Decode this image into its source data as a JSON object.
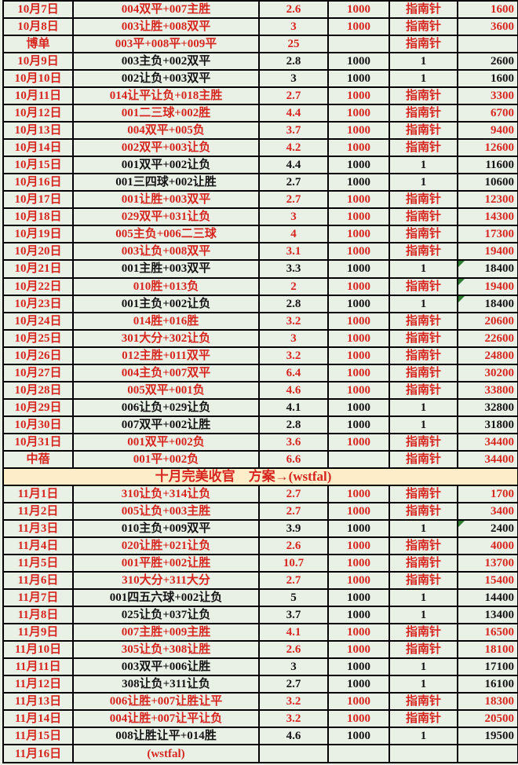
{
  "colors": {
    "cell_background": "#e9f1e6",
    "banner_background": "#fdeec9",
    "red_text": "#d7261f",
    "black_text": "#141414",
    "grid_border": "#000000",
    "comment_triangle_green": "#2f7d33"
  },
  "banner": {
    "text": "十月完美收官    方案→(wstfal)"
  },
  "table": {
    "rows": [
      {
        "date": "10月7日",
        "plan": "004双平+007主胜",
        "odds": "2.6",
        "stake": "1000",
        "source": "指南针",
        "result": "1600",
        "style": "red"
      },
      {
        "date": "10月8日",
        "plan": "003让胜+008双平",
        "odds": "3",
        "stake": "1000",
        "source": "指南针",
        "result": "3600",
        "style": "red"
      },
      {
        "date": "博单",
        "plan": "003平+008平+009平",
        "odds": "25",
        "stake": "",
        "source": "指南针",
        "result": "",
        "style": "red"
      },
      {
        "date": "10月9日",
        "plan": "003主负+002双平",
        "odds": "2.8",
        "stake": "1000",
        "source": "1",
        "result": "2600",
        "style": "black"
      },
      {
        "date": "10月10日",
        "plan": "002让负+003双平",
        "odds": "3",
        "stake": "1000",
        "source": "1",
        "result": "1600",
        "style": "black"
      },
      {
        "date": "10月11日",
        "plan": "014让平让负+018主胜",
        "odds": "2.7",
        "stake": "1000",
        "source": "指南针",
        "result": "3300",
        "style": "red"
      },
      {
        "date": "10月12日",
        "plan": "001二三球+002胜",
        "odds": "4.4",
        "stake": "1000",
        "source": "指南针",
        "result": "6700",
        "style": "red"
      },
      {
        "date": "10月13日",
        "plan": "004双平+005负",
        "odds": "3.7",
        "stake": "1000",
        "source": "指南针",
        "result": "9400",
        "style": "red"
      },
      {
        "date": "10月14日",
        "plan": "002双平+003让负",
        "odds": "4.2",
        "stake": "1000",
        "source": "指南针",
        "result": "12600",
        "style": "red"
      },
      {
        "date": "10月15日",
        "plan": "001双平+002让负",
        "odds": "4.4",
        "stake": "1000",
        "source": "1",
        "result": "11600",
        "style": "black"
      },
      {
        "date": "10月16日",
        "plan": "001三四球+002让胜",
        "odds": "2.7",
        "stake": "1000",
        "source": "1",
        "result": "10600",
        "style": "black"
      },
      {
        "date": "10月17日",
        "plan": "001让胜+003双平",
        "odds": "2.7",
        "stake": "1000",
        "source": "指南针",
        "result": "12300",
        "style": "red"
      },
      {
        "date": "10月18日",
        "plan": "029双平+031让负",
        "odds": "3",
        "stake": "1000",
        "source": "指南针",
        "result": "14300",
        "style": "red"
      },
      {
        "date": "10月19日",
        "plan": "005主负+006二三球",
        "odds": "4",
        "stake": "1000",
        "source": "指南针",
        "result": "17300",
        "style": "red"
      },
      {
        "date": "10月20日",
        "plan": "003让负+008双平",
        "odds": "3.1",
        "stake": "1000",
        "source": "指南针",
        "result": "19400",
        "style": "red"
      },
      {
        "date": "10月21日",
        "plan": "001主胜+003双平",
        "odds": "3.3",
        "stake": "1000",
        "source": "1",
        "result": "18400",
        "style": "black",
        "mark": true
      },
      {
        "date": "10月22日",
        "plan": "010胜+013负",
        "odds": "2",
        "stake": "1000",
        "source": "指南针",
        "result": "19400",
        "style": "red",
        "mark": true
      },
      {
        "date": "10月23日",
        "plan": "001主负+002让负",
        "odds": "2.8",
        "stake": "1000",
        "source": "1",
        "result": "18400",
        "style": "black",
        "mark": true
      },
      {
        "date": "10月24日",
        "plan": "014胜+016胜",
        "odds": "3.2",
        "stake": "1000",
        "source": "指南针",
        "result": "20600",
        "style": "red"
      },
      {
        "date": "10月25日",
        "plan": "301大分+302让负",
        "odds": "3",
        "stake": "1000",
        "source": "指南针",
        "result": "22600",
        "style": "red"
      },
      {
        "date": "10月26日",
        "plan": "012主胜+011双平",
        "odds": "3.2",
        "stake": "1000",
        "source": "指南针",
        "result": "24800",
        "style": "red"
      },
      {
        "date": "10月27日",
        "plan": "004主负+007双平",
        "odds": "6.4",
        "stake": "1000",
        "source": "指南针",
        "result": "30200",
        "style": "red"
      },
      {
        "date": "10月28日",
        "plan": "005双平+001负",
        "odds": "4.6",
        "stake": "1000",
        "source": "指南针",
        "result": "33800",
        "style": "red"
      },
      {
        "date": "10月29日",
        "plan": "006让负+029让负",
        "odds": "4.1",
        "stake": "1000",
        "source": "1",
        "result": "32800",
        "style": "black"
      },
      {
        "date": "10月30日",
        "plan": "007双平+002让胜",
        "odds": "2.8",
        "stake": "1000",
        "source": "1",
        "result": "31800",
        "style": "black"
      },
      {
        "date": "10月31日",
        "plan": "001双平+002负",
        "odds": "3.6",
        "stake": "1000",
        "source": "指南针",
        "result": "34400",
        "style": "red"
      },
      {
        "date": "中蓓",
        "plan": "001平+002负",
        "odds": "6.6",
        "stake": "",
        "source": "指南针",
        "result": "34400",
        "style": "red"
      },
      {
        "banner": true
      },
      {
        "date": "11月1日",
        "plan": "310让负+314让负",
        "odds": "2.7",
        "stake": "1000",
        "source": "指南针",
        "result": "1700",
        "style": "red"
      },
      {
        "date": "11月2日",
        "plan": "005让负+003主胜",
        "odds": "2.7",
        "stake": "1000",
        "source": "指南针",
        "result": "3400",
        "style": "red"
      },
      {
        "date": "11月3日",
        "plan": "010主负+009双平",
        "odds": "3.9",
        "stake": "1000",
        "source": "1",
        "result": "2400",
        "style": "black",
        "mark": true
      },
      {
        "date": "11月4日",
        "plan": "020让胜+021让负",
        "odds": "2.6",
        "stake": "1000",
        "source": "指南针",
        "result": "4000",
        "style": "red"
      },
      {
        "date": "11月5日",
        "plan": "001平胜+002让胜",
        "odds": "10.7",
        "stake": "1000",
        "source": "指南针",
        "result": "13700",
        "style": "red"
      },
      {
        "date": "11月6日",
        "plan": "310大分+311大分",
        "odds": "2.7",
        "stake": "1000",
        "source": "指南针",
        "result": "15400",
        "style": "red"
      },
      {
        "date": "11月7日",
        "plan": "001四五六球+002让负",
        "odds": "5",
        "stake": "1000",
        "source": "1",
        "result": "14400",
        "style": "black"
      },
      {
        "date": "11月8日",
        "plan": "025让负+037让负",
        "odds": "3.7",
        "stake": "1000",
        "source": "1",
        "result": "13400",
        "style": "black"
      },
      {
        "date": "11月9日",
        "plan": "007主胜+009主胜",
        "odds": "4.1",
        "stake": "1000",
        "source": "指南针",
        "result": "16500",
        "style": "red"
      },
      {
        "date": "11月10日",
        "plan": "305让负+308让胜",
        "odds": "2.6",
        "stake": "1000",
        "source": "指南针",
        "result": "18100",
        "style": "red"
      },
      {
        "date": "11月11日",
        "plan": "003双平+006让胜",
        "odds": "3",
        "stake": "1000",
        "source": "1",
        "result": "17100",
        "style": "black"
      },
      {
        "date": "11月12日",
        "plan": "308让负+311让负",
        "odds": "2.7",
        "stake": "1000",
        "source": "1",
        "result": "16100",
        "style": "black"
      },
      {
        "date": "11月13日",
        "plan": "006让胜+007让胜让平",
        "odds": "3.2",
        "stake": "1000",
        "source": "指南针",
        "result": "18300",
        "style": "red"
      },
      {
        "date": "11月14日",
        "plan": "004让胜+007让平让负",
        "odds": "3.2",
        "stake": "1000",
        "source": "指南针",
        "result": "20500",
        "style": "red"
      },
      {
        "date": "11月15日",
        "plan": "008让胜让平+014胜",
        "odds": "4.6",
        "stake": "1000",
        "source": "1",
        "result": "19500",
        "style": "black"
      },
      {
        "date": "11月16日",
        "plan": "(wstfal)",
        "odds": "",
        "stake": "",
        "source": "",
        "result": "",
        "style": "red"
      }
    ]
  }
}
